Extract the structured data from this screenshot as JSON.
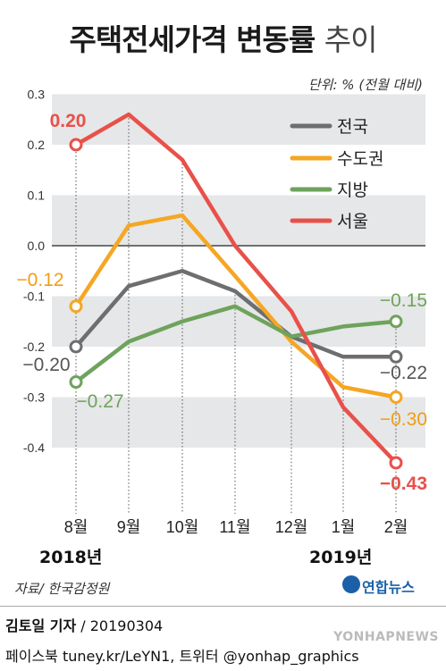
{
  "title_main": "주택전세가격 변동률",
  "title_sub": "추이",
  "unit": "단위: % (전월 대비)",
  "year_2018": "2018년",
  "year_2019": "2019년",
  "source": "자료/ 한국감정원",
  "logo": "연합뉴스",
  "reporter_name": "김토일 기자",
  "reporter_date": " / 20190304",
  "social": "페이스북 tuney.kr/LeYN1, 트위터 @yonhap_graphics",
  "watermark": "YONHAPNEWS",
  "chart_data": {
    "type": "line",
    "categories": [
      "8월",
      "9월",
      "10월",
      "11월",
      "12월",
      "1월",
      "2월"
    ],
    "ylim": [
      -0.5,
      0.3
    ],
    "yticks": [
      "0.3",
      "0.2",
      "0.1",
      "0.0",
      "-0.1",
      "-0.2",
      "-0.3",
      "-0.4"
    ],
    "ytick_values": [
      0.3,
      0.2,
      0.1,
      0.0,
      -0.1,
      -0.2,
      -0.3,
      -0.4
    ],
    "grid": true,
    "legend_position": "top-right",
    "series": [
      {
        "name": "전국",
        "color": "#6d6e70",
        "values": [
          -0.2,
          -0.08,
          -0.05,
          -0.09,
          -0.18,
          -0.22,
          -0.22
        ],
        "start_label": "−0.20",
        "end_label": "−0.22"
      },
      {
        "name": "수도권",
        "color": "#f5a623",
        "values": [
          -0.12,
          0.04,
          0.06,
          -0.06,
          -0.19,
          -0.28,
          -0.3
        ],
        "start_label": "−0.12",
        "end_label": "−0.30"
      },
      {
        "name": "지방",
        "color": "#6ea35c",
        "values": [
          -0.27,
          -0.19,
          -0.15,
          -0.12,
          -0.18,
          -0.16,
          -0.15
        ],
        "start_label": "−0.27",
        "end_label": "−0.15"
      },
      {
        "name": "서울",
        "color": "#e8514a",
        "values": [
          0.2,
          0.26,
          0.17,
          0.0,
          -0.13,
          -0.32,
          -0.43
        ],
        "start_label": "0.20",
        "end_label": "−0.43"
      }
    ]
  }
}
